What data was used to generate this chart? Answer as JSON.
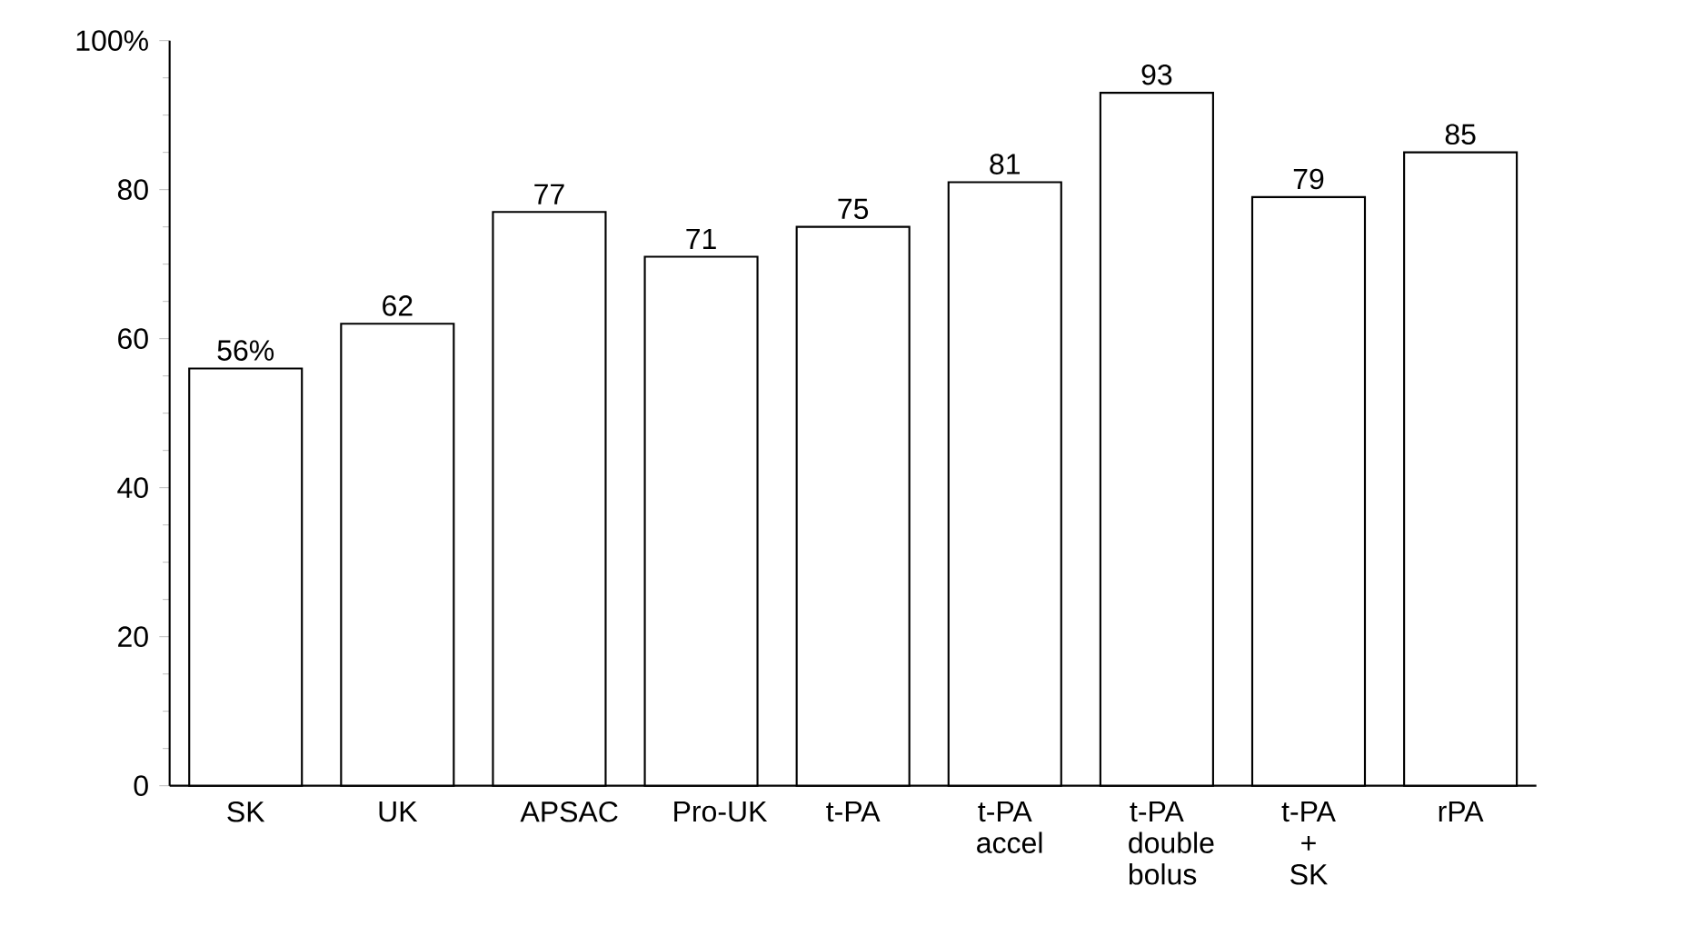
{
  "chart_data": {
    "type": "bar",
    "categories": [
      "SK",
      "UK",
      "APSAC",
      "Pro-UK",
      "t-PA",
      "t-PA accel",
      "t-PA double bolus",
      "t-PA + SK",
      "rPA"
    ],
    "values": [
      56,
      62,
      77,
      71,
      75,
      81,
      93,
      79,
      85
    ],
    "value_labels": [
      "56%",
      "62",
      "77",
      "71",
      "75",
      "81",
      "93",
      "79",
      "85"
    ],
    "color": "#ffffff",
    "ylim": [
      0,
      100
    ],
    "yticks": [
      0,
      20,
      40,
      60,
      80,
      {
        "value": 100,
        "label": "100%"
      }
    ],
    "grid": false
  }
}
